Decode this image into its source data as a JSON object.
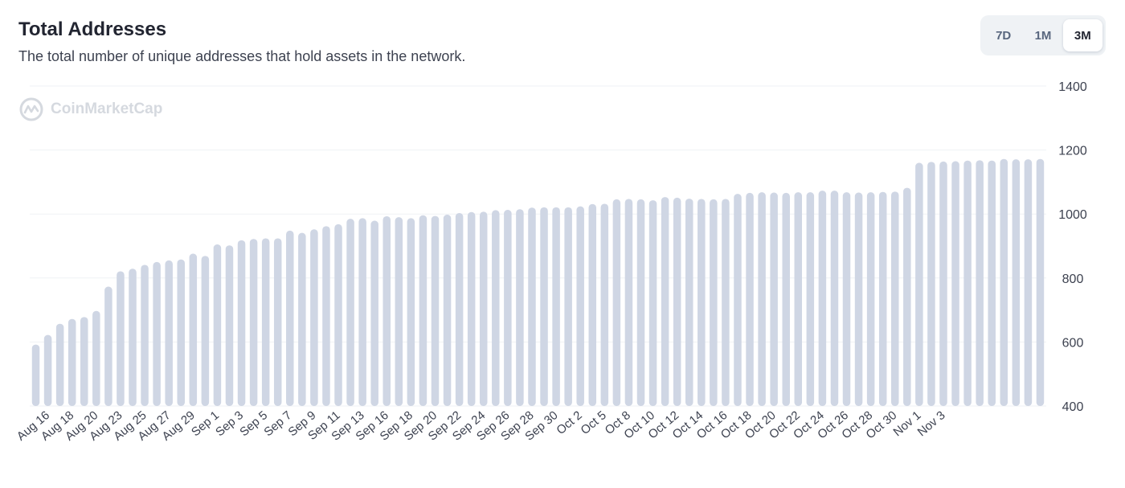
{
  "header": {
    "title": "Total Addresses",
    "subtitle": "The total number of unique addresses that hold assets in the network."
  },
  "range_toggle": {
    "options": [
      "7D",
      "1M",
      "3M"
    ],
    "selected": "3M"
  },
  "watermark": {
    "text": "CoinMarketCap",
    "icon": "coinmarketcap-logo-icon"
  },
  "colors": {
    "bar": "#cfd6e4",
    "grid": "#eff2f5",
    "axis_text": "#3d4250",
    "title": "#222531"
  },
  "chart_data": {
    "type": "bar",
    "title": "Total Addresses",
    "ylim": [
      400,
      1400
    ],
    "yticks": [
      400,
      600,
      800,
      1000,
      1200,
      1400
    ],
    "y_axis_position": "right",
    "grid": "horizontal",
    "x_tick_labels": [
      "Aug 16",
      "Aug 18",
      "Aug 20",
      "Aug 23",
      "Aug 25",
      "Aug 27",
      "Aug 29",
      "Sep 1",
      "Sep 3",
      "Sep 5",
      "Sep 7",
      "Sep 9",
      "Sep 11",
      "Sep 13",
      "Sep 16",
      "Sep 18",
      "Sep 20",
      "Sep 22",
      "Sep 24",
      "Sep 26",
      "Sep 28",
      "Sep 30",
      "Oct 2",
      "Oct 5",
      "Oct 8",
      "Oct 10",
      "Oct 12",
      "Oct 14",
      "Oct 16",
      "Oct 18",
      "Oct 20",
      "Oct 22",
      "Oct 24",
      "Oct 26",
      "Oct 28",
      "Oct 30",
      "Nov 1",
      "Nov 3"
    ],
    "values": [
      592,
      622,
      657,
      672,
      678,
      697,
      773,
      821,
      829,
      841,
      850,
      855,
      858,
      876,
      869,
      905,
      902,
      918,
      922,
      924,
      924,
      948,
      941,
      952,
      962,
      968,
      985,
      987,
      979,
      993,
      990,
      987,
      996,
      994,
      998,
      1003,
      1006,
      1007,
      1012,
      1013,
      1015,
      1020,
      1021,
      1021,
      1021,
      1024,
      1031,
      1032,
      1046,
      1047,
      1046,
      1043,
      1053,
      1051,
      1048,
      1047,
      1046,
      1047,
      1063,
      1066,
      1068,
      1067,
      1066,
      1068,
      1068,
      1073,
      1073,
      1068,
      1067,
      1068,
      1069,
      1070,
      1082,
      1160,
      1163,
      1164,
      1165,
      1167,
      1168,
      1167,
      1172,
      1171,
      1171,
      1172
    ]
  }
}
